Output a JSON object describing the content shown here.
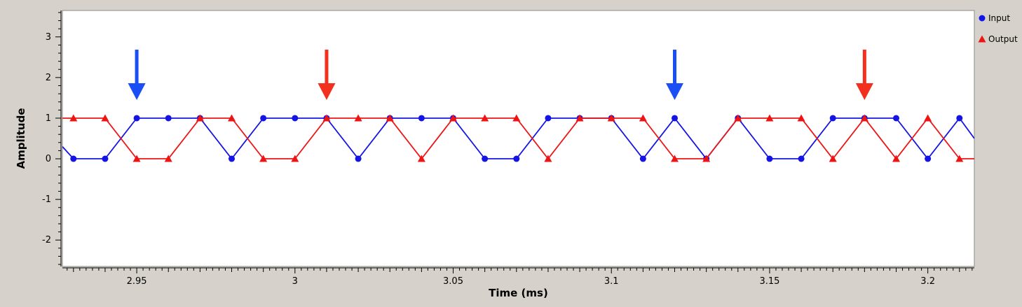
{
  "chart_data": {
    "type": "line",
    "xlabel": "Time (ms)",
    "ylabel": "Amplitude",
    "xlim": [
      2.9265,
      3.2147
    ],
    "ylim": [
      -2.65,
      3.65
    ],
    "x_ticks": [
      2.95,
      3,
      3.05,
      3.1,
      3.15,
      3.2
    ],
    "x_tick_labels": [
      "2.95",
      "3",
      "3.05",
      "3.1",
      "3.15",
      "3.2"
    ],
    "y_ticks": [
      -2,
      -1,
      0,
      1,
      2,
      3
    ],
    "y_tick_labels": [
      "-2",
      "-1",
      "0",
      "1",
      "2",
      "3"
    ],
    "x_minor_step": 0.01,
    "y_minor_step": 0.2,
    "grid": false,
    "legend_position": "right",
    "series": [
      {
        "name": "Input",
        "color": "#1414e6",
        "marker": "circle",
        "x": [
          2.93,
          2.94,
          2.95,
          2.96,
          2.97,
          2.98,
          2.99,
          3.0,
          3.01,
          3.02,
          3.03,
          3.04,
          3.05,
          3.06,
          3.07,
          3.08,
          3.09,
          3.1,
          3.11,
          3.12,
          3.13,
          3.14,
          3.15,
          3.16,
          3.17,
          3.18,
          3.19,
          3.2,
          3.21
        ],
        "values": [
          0,
          0,
          1,
          1,
          1,
          0,
          1,
          1,
          1,
          0,
          1,
          1,
          1,
          0,
          0,
          1,
          1,
          1,
          0,
          1,
          0,
          1,
          0,
          0,
          1,
          1,
          1,
          0,
          1
        ],
        "line_start": {
          "x": 2.9265,
          "y": 0.3
        },
        "line_end": {
          "x": 3.2147,
          "y": 0.5
        }
      },
      {
        "name": "Output",
        "color": "#ee1414",
        "marker": "triangle",
        "x": [
          2.93,
          2.94,
          2.95,
          2.96,
          2.97,
          2.98,
          2.99,
          3.0,
          3.01,
          3.02,
          3.03,
          3.04,
          3.05,
          3.06,
          3.07,
          3.08,
          3.09,
          3.1,
          3.11,
          3.12,
          3.13,
          3.14,
          3.15,
          3.16,
          3.17,
          3.18,
          3.19,
          3.2,
          3.21
        ],
        "values": [
          1,
          1,
          0,
          0,
          1,
          1,
          0,
          0,
          1,
          1,
          1,
          0,
          1,
          1,
          1,
          0,
          1,
          1,
          1,
          0,
          0,
          1,
          1,
          1,
          0,
          1,
          0,
          1,
          0
        ],
        "line_start": {
          "x": 2.9265,
          "y": 1
        },
        "line_end": {
          "x": 3.2147,
          "y": 0
        }
      }
    ],
    "annotations": [
      {
        "type": "arrow",
        "color": "blue",
        "x": 2.95
      },
      {
        "type": "arrow",
        "color": "red",
        "x": 3.01
      },
      {
        "type": "arrow",
        "color": "blue",
        "x": 3.12
      },
      {
        "type": "arrow",
        "color": "red",
        "x": 3.18
      }
    ],
    "arrow_colors": {
      "blue": "#1a4ff5",
      "red": "#f2301e"
    },
    "plot_background": "#ffffff",
    "frame_background": "#d6d2cb"
  }
}
